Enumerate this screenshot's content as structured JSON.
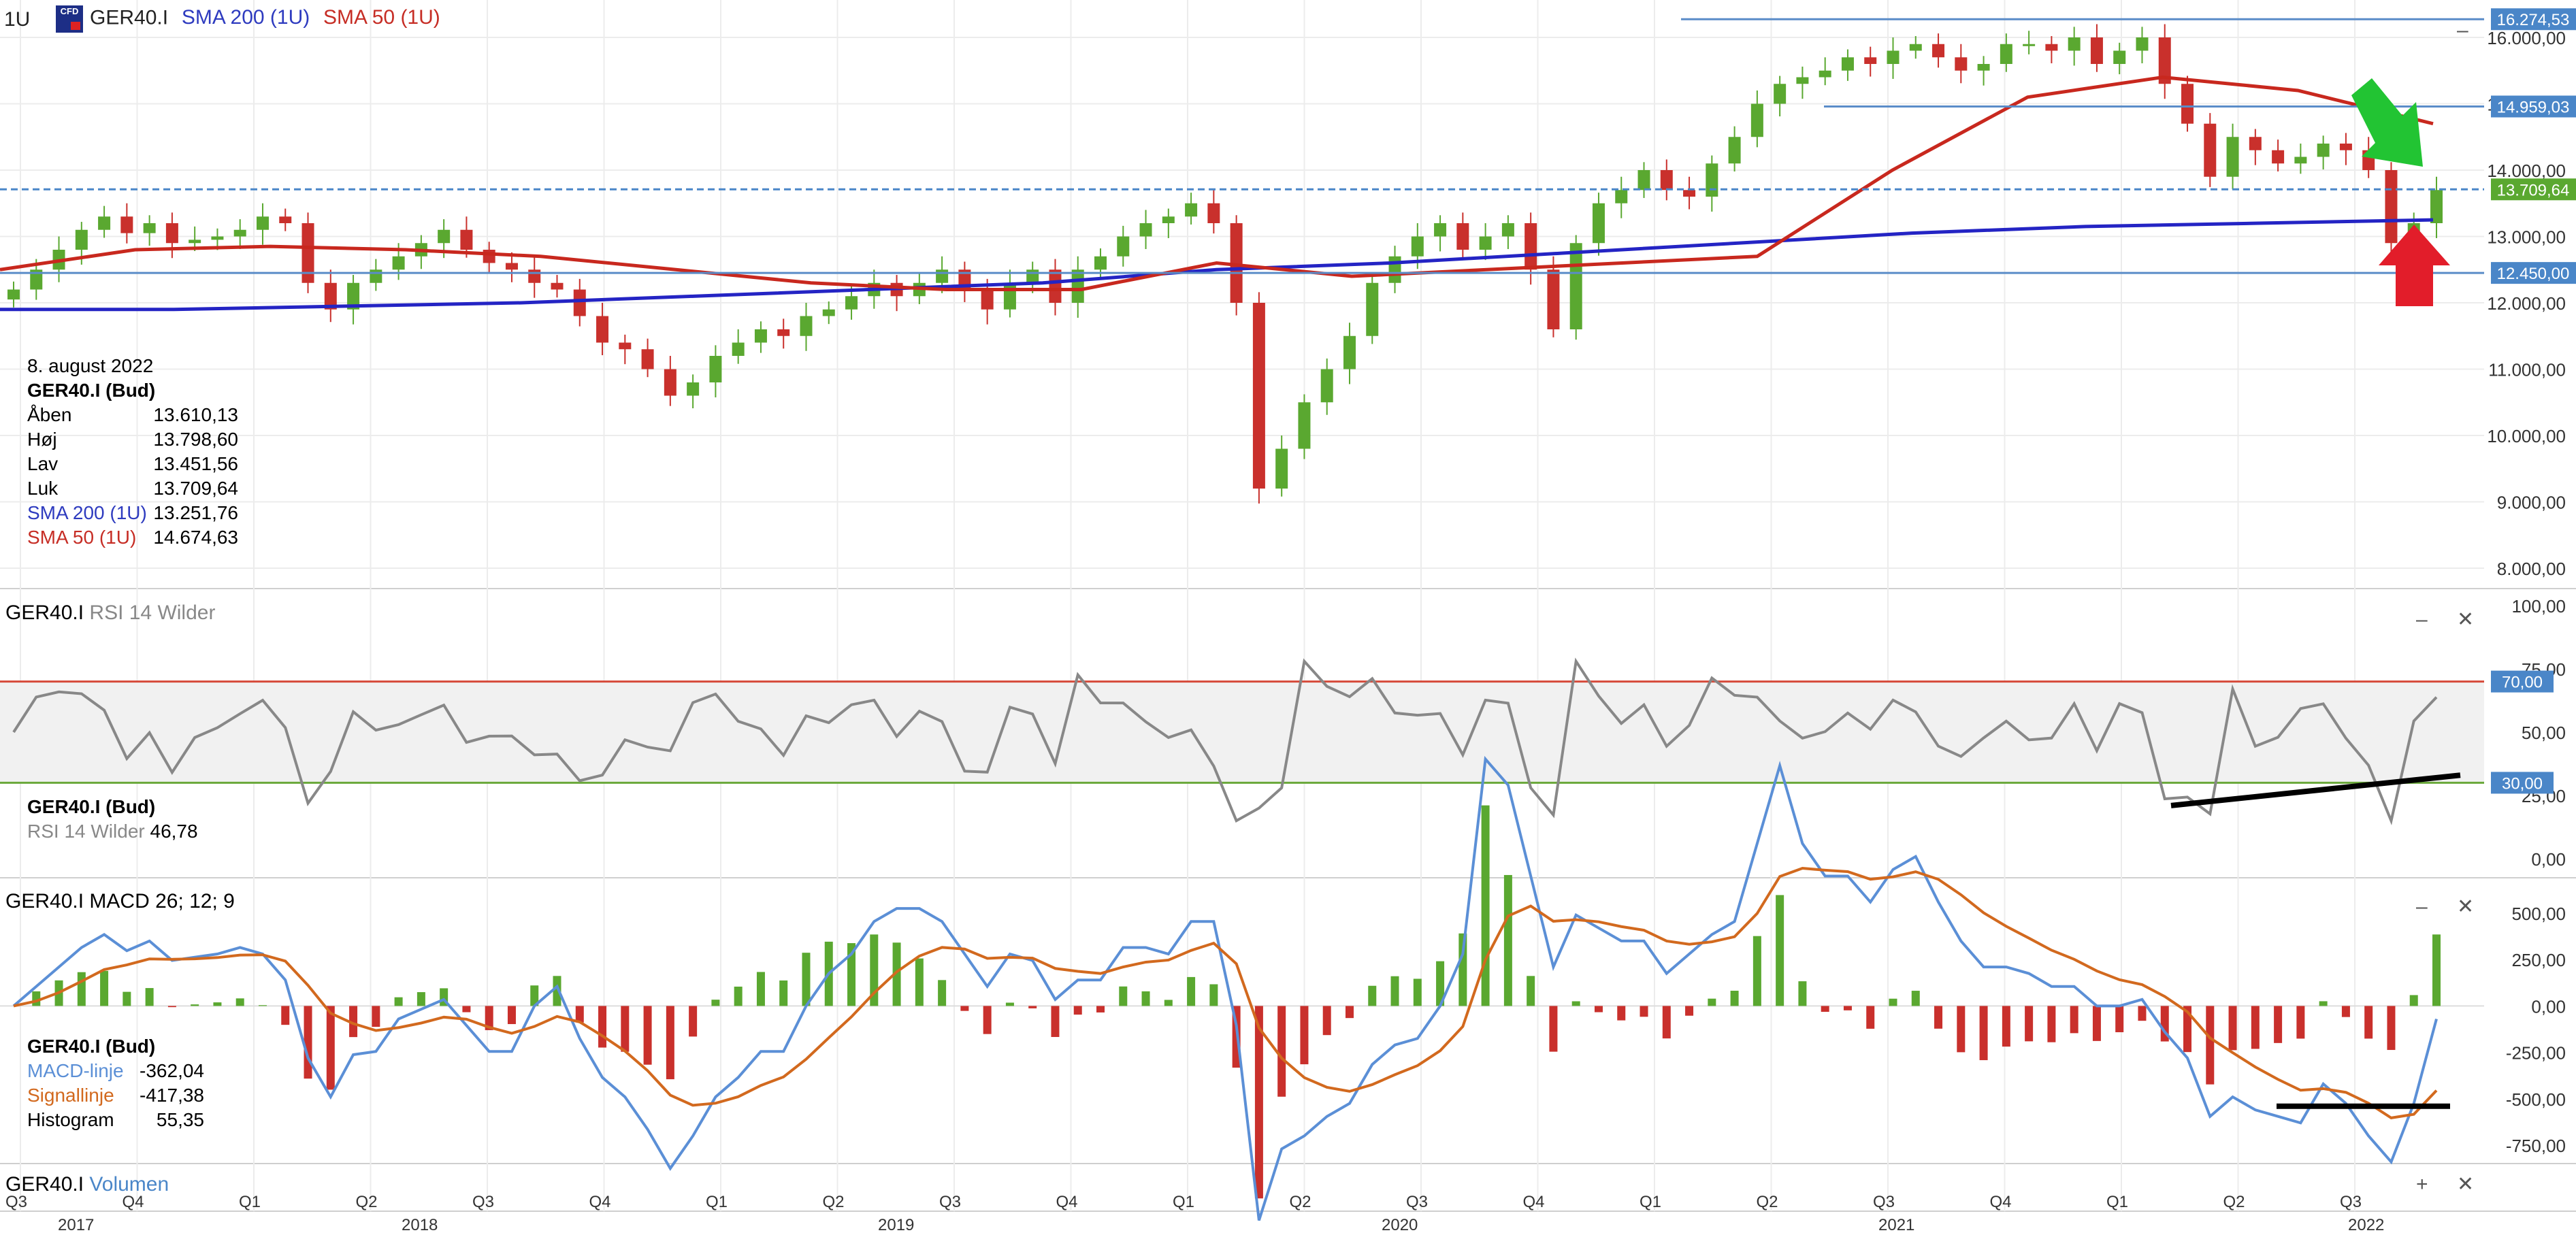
{
  "header": {
    "interval": "1U",
    "symbol": "GER40.I",
    "sma200_label": "SMA 200 (1U)",
    "sma50_label": "SMA 50 (1U)",
    "cfd_badge": "CFD"
  },
  "ohlc_box": {
    "date": "8. august 2022",
    "instrument": "GER40.I (Bud)",
    "rows": [
      {
        "label": "Åben",
        "value": "13.610,13"
      },
      {
        "label": "Høj",
        "value": "13.798,60"
      },
      {
        "label": "Lav",
        "value": "13.451,56"
      },
      {
        "label": "Luk",
        "value": "13.709,64"
      },
      {
        "label": "SMA 200 (1U)",
        "value": "13.251,76"
      },
      {
        "label": "SMA 50 (1U)",
        "value": "14.674,63"
      }
    ]
  },
  "rsi_panel": {
    "title_symbol": "GER40.I",
    "title_indicator": "RSI 14 Wilder",
    "instrument": "GER40.I (Bud)",
    "value_label": "RSI 14 Wilder",
    "value": "46,78"
  },
  "macd_panel": {
    "title_symbol": "GER40.I",
    "title_indicator": "MACD 26; 12; 9",
    "instrument": "GER40.I (Bud)",
    "rows": [
      {
        "label": "MACD-linje",
        "value": "-362,04"
      },
      {
        "label": "Signallinje",
        "value": "-417,38"
      },
      {
        "label": "Histogram",
        "value": "55,35"
      }
    ]
  },
  "volume_panel": {
    "title_symbol": "GER40.I",
    "title_indicator": "Volumen"
  },
  "controls": {
    "minimize": "–",
    "close": "✕",
    "add": "+"
  },
  "colors": {
    "up": "#5aa830",
    "down": "#c9302c",
    "sma200": "#2424c4",
    "sma50": "#c8281e",
    "hline": "#5a8cc8",
    "macd": "#5b8fd6",
    "signal": "#d2691e",
    "rsi": "#888888",
    "label_bg_blue": "#4a86c8",
    "label_bg_green": "#5aa830"
  },
  "chart_data": {
    "type": "candlestick",
    "x_axis": {
      "quarters": [
        "Q3",
        "Q4",
        "Q1",
        "Q2",
        "Q3",
        "Q4",
        "Q1",
        "Q2",
        "Q3",
        "Q4",
        "Q1",
        "Q2",
        "Q3",
        "Q4",
        "Q1",
        "Q2",
        "Q3",
        "Q4",
        "Q1",
        "Q2",
        "Q3"
      ],
      "years": [
        "2017",
        "2018",
        "2019",
        "2020",
        "2021",
        "2022"
      ]
    },
    "price_axis": {
      "ticks": [
        "16.000,00",
        "15.000,00",
        "14.000,00",
        "13.000,00",
        "12.000,00",
        "11.000,00",
        "10.000,00",
        "9.000,00",
        "8.000,00"
      ],
      "ylim": [
        7900,
        16600
      ]
    },
    "price_levels": [
      {
        "label": "16.274,53",
        "value": 16274.53,
        "color": "blue"
      },
      {
        "label": "14.959,03",
        "value": 14959.03,
        "color": "blue"
      },
      {
        "label": "13.709,64",
        "value": 13709.64,
        "color": "green"
      },
      {
        "label": "12.450,00",
        "value": 12450.0,
        "color": "blue"
      }
    ],
    "price_close_weekly_approx": [
      12200,
      12500,
      12800,
      13100,
      13300,
      13050,
      13200,
      12900,
      12950,
      13000,
      13100,
      13300,
      13200,
      12300,
      11900,
      12300,
      12500,
      12700,
      12900,
      13100,
      12800,
      12600,
      12500,
      12300,
      12200,
      11800,
      11400,
      11300,
      11000,
      10600,
      10800,
      11200,
      11400,
      11600,
      11500,
      11800,
      11900,
      12100,
      12300,
      12100,
      12300,
      12500,
      12200,
      11900,
      12300,
      12500,
      12000,
      12500,
      12700,
      13000,
      13200,
      13300,
      13500,
      13200,
      12000,
      9200,
      9800,
      10500,
      11000,
      11500,
      12300,
      12700,
      13000,
      13200,
      12800,
      13000,
      13200,
      12500,
      11600,
      12900,
      13500,
      13700,
      14000,
      13700,
      13600,
      14100,
      14500,
      15000,
      15300,
      15400,
      15500,
      15700,
      15600,
      15800,
      15900,
      15700,
      15500,
      15600,
      15900,
      15900,
      15800,
      16000,
      15600,
      15800,
      16000,
      15300,
      14700,
      13900,
      14500,
      14300,
      14100,
      14200,
      14400,
      14300,
      14000,
      12900,
      13200,
      13700
    ],
    "sma200": {
      "name": "SMA 200 (1U)",
      "approx": [
        11900,
        11900,
        11950,
        12000,
        12100,
        12200,
        12300,
        12500,
        12600,
        12750,
        12900,
        13050,
        13150,
        13200,
        13250
      ]
    },
    "sma50": {
      "name": "SMA 50 (1U)",
      "approx": [
        12500,
        12800,
        12850,
        12800,
        12700,
        12500,
        12300,
        12200,
        12200,
        12600,
        12400,
        12500,
        12600,
        12700,
        14000,
        15100,
        15400,
        15200,
        14700
      ]
    },
    "rsi": {
      "name": "RSI 14 Wilder",
      "axis_ticks": [
        "100,00",
        "75,00",
        "50,00",
        "25,00",
        "0,00"
      ],
      "levels": [
        {
          "label": "70,00",
          "value": 70
        },
        {
          "label": "30,00",
          "value": 30
        }
      ],
      "last": 46.78
    },
    "macd": {
      "axis_ticks": [
        "500,00",
        "250,00",
        "0,00",
        "-250,00",
        "-500,00",
        "-750,00"
      ],
      "macd_line_last": -362.04,
      "signal_last": -417.38,
      "histogram_last": 55.35
    }
  }
}
